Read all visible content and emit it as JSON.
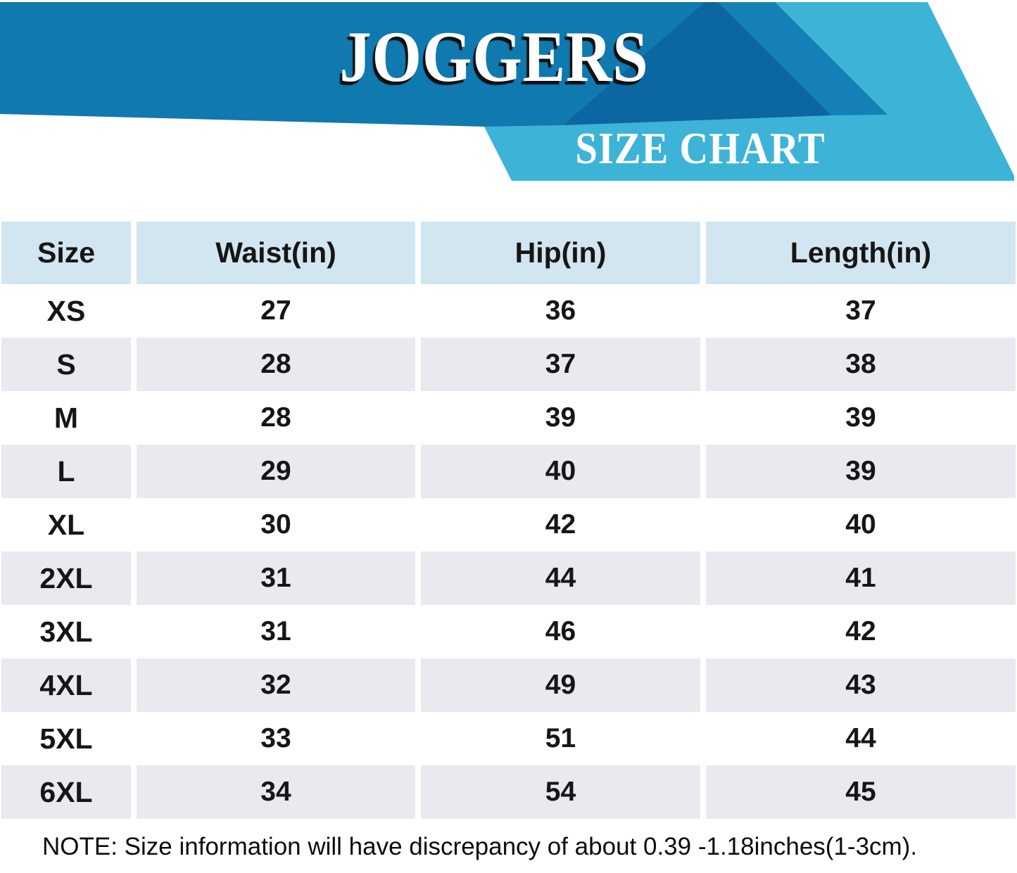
{
  "header": {
    "title": "JOGGERS",
    "subtitle": "SIZE CHART"
  },
  "chart_data": {
    "type": "table",
    "title": "JOGGERS",
    "subtitle": "SIZE CHART",
    "columns": [
      "Size",
      "Waist(in)",
      "Hip(in)",
      "Length(in)"
    ],
    "rows": [
      [
        "XS",
        27,
        36,
        37
      ],
      [
        "S",
        28,
        37,
        38
      ],
      [
        "M",
        28,
        39,
        39
      ],
      [
        "L",
        29,
        40,
        39
      ],
      [
        "XL",
        30,
        42,
        40
      ],
      [
        "2XL",
        31,
        44,
        41
      ],
      [
        "3XL",
        31,
        46,
        42
      ],
      [
        "4XL",
        32,
        49,
        43
      ],
      [
        "5XL",
        33,
        51,
        44
      ],
      [
        "6XL",
        34,
        54,
        45
      ]
    ],
    "units": "inches",
    "layout_hints": {
      "header_row": true,
      "zebra_striping": true,
      "grid": "column gutters only"
    }
  },
  "note": {
    "text": "NOTE: Size information will have discrepancy of about 0.39 -1.18inches(1-3cm)."
  },
  "colors": {
    "band": "#0f79b0",
    "dark": "#0c66a2",
    "stripe": "#1480b6",
    "light": "#3db3d7",
    "header_cell": "#d2e6f1",
    "row": "#ffffff",
    "row_alt": "#e9e9ef",
    "text": "#161616",
    "title_text": "#ffffff",
    "title_shadow": "#101010",
    "note_text": "#0c0c0c"
  }
}
